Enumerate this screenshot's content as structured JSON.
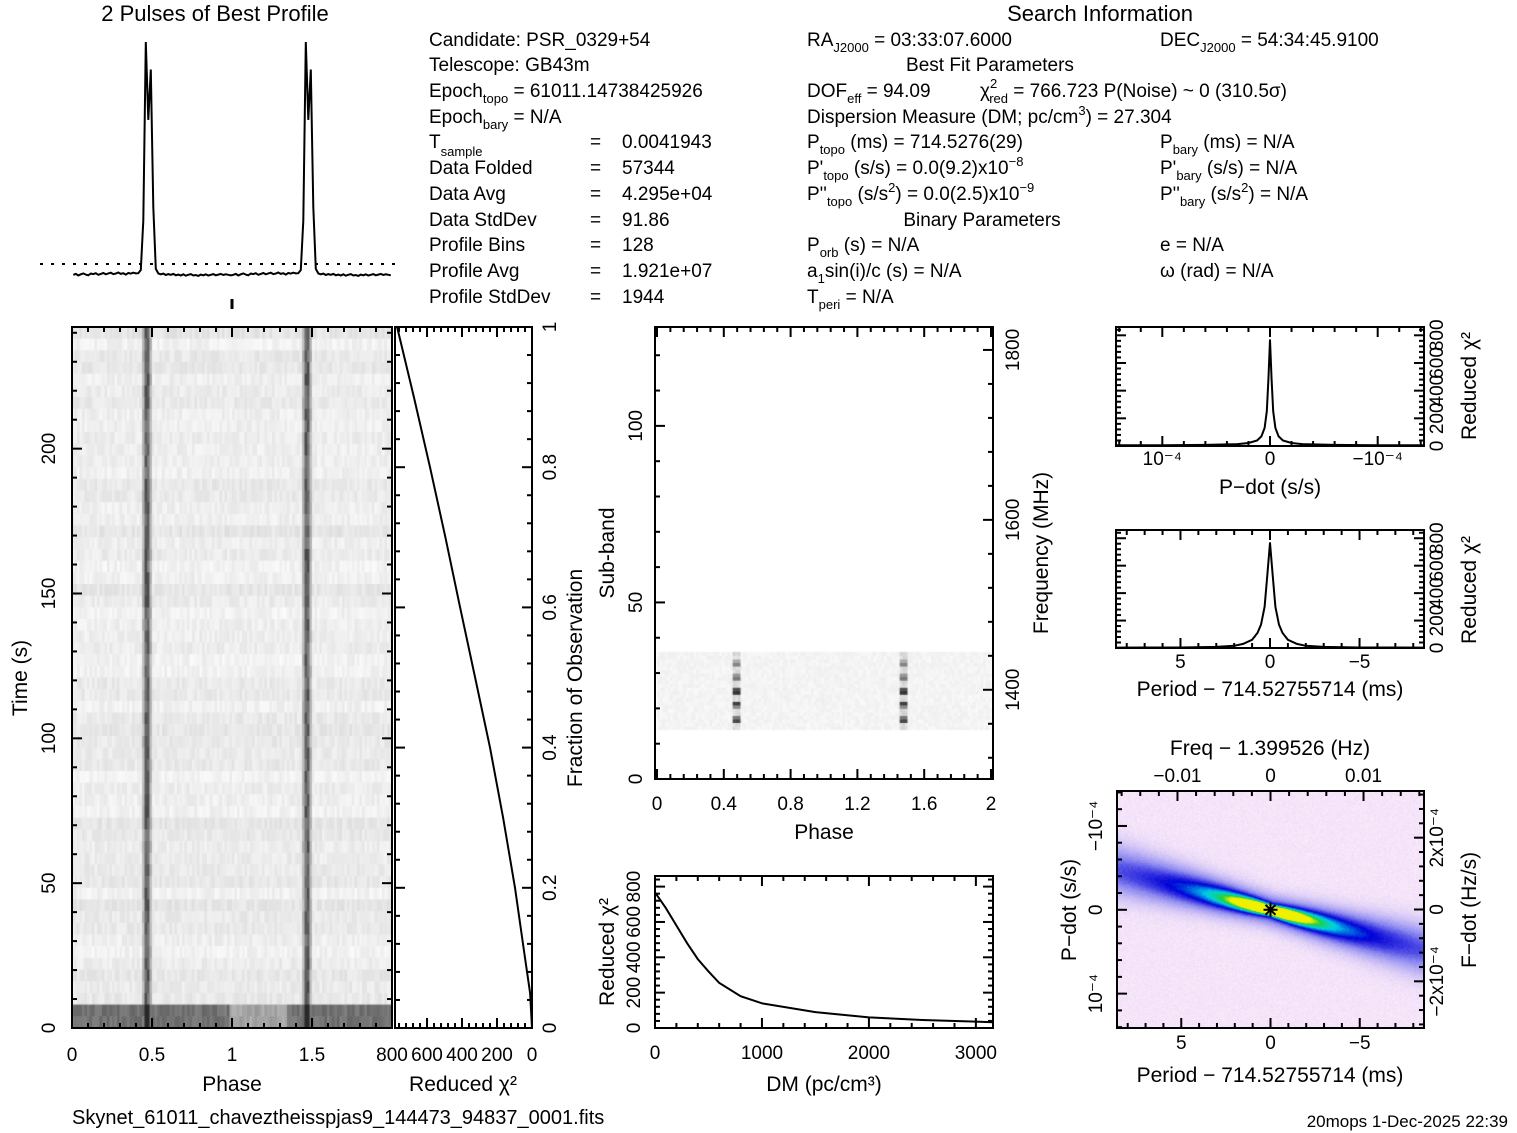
{
  "header": {
    "profile_title": "2 Pulses of Best Profile",
    "search_title": "Search Information"
  },
  "info": {
    "left": [
      {
        "main": "Candidate:  PSR_0329+54"
      },
      {
        "main": "Telescope:  GB43m"
      },
      {
        "main": "Epoch",
        "sub": "topo",
        "rest": " = 61011.14738425926"
      },
      {
        "main": "Epoch",
        "sub": "bary",
        "rest": " = N/A"
      },
      {
        "main": "T",
        "sub": "sample",
        "eq": "=",
        "val": "0.0041943"
      },
      {
        "main": "Data Folded",
        "eq": "=",
        "val": "57344"
      },
      {
        "main": "Data Avg",
        "eq": "=",
        "val": "4.295e+04"
      },
      {
        "main": "Data StdDev",
        "eq": "=",
        "val": "91.86"
      },
      {
        "main": "Profile Bins",
        "eq": "=",
        "val": "128"
      },
      {
        "main": "Profile Avg",
        "eq": "=",
        "val": "1.921e+07"
      },
      {
        "main": "Profile StdDev",
        "eq": "=",
        "val": "1944"
      }
    ],
    "middle": {
      "ra": {
        "main": "RA",
        "sub": "J2000",
        "rest": " = 03:33:07.6000"
      },
      "best_fit_heading": "Best Fit Parameters",
      "dof": {
        "main": "DOF",
        "sub": "eff",
        "rest": " = 94.09"
      },
      "chi2": {
        "main": "χ",
        "sup": "2",
        "sub": "red",
        "rest": " = 766.723  P(Noise) ~ 0   (310.5σ)"
      },
      "dm": {
        "main": "Dispersion Measure (DM; pc/cm",
        "sup": "3",
        "rest": ") = 27.304"
      },
      "p_topo": {
        "main": "P",
        "sub": "topo",
        "rest": " (ms) =  714.5276(29)"
      },
      "pd_topo": {
        "main": "P'",
        "sub": "topo",
        "rest": " (s/s) = 0.0(9.2)x10",
        "sup": "−8"
      },
      "pdd_topo": {
        "main": "P''",
        "sub": "topo",
        "rest": " (s/s",
        "sup": "2",
        "rest2": ") = 0.0(2.5)x10",
        "sup2": "−9"
      },
      "binary_heading": "Binary Parameters",
      "p_orb": {
        "main": "P",
        "sub": "orb",
        "rest": " (s) = N/A"
      },
      "a1sini": {
        "main": "a",
        "sub": "1",
        "rest": "sin(i)/c (s) = N/A"
      },
      "t_peri": {
        "main": "T",
        "sub": "peri",
        "rest": " = N/A"
      }
    },
    "right": {
      "dec": {
        "main": "DEC",
        "sub": "J2000",
        "rest": " = 54:34:45.9100"
      },
      "p_bary": {
        "main": "P",
        "sub": "bary",
        "rest": " (ms) = N/A"
      },
      "pd_bary": {
        "main": "P'",
        "sub": "bary",
        "rest": " (s/s) = N/A"
      },
      "pdd_bary": {
        "main": "P''",
        "sub": "bary",
        "rest": " (s/s",
        "sup": "2",
        "rest2": ") = N/A"
      },
      "e": "e = N/A",
      "omega": "ω (rad) = N/A"
    }
  },
  "footer": {
    "filename": "Skynet_61011_chaveztheisspjas9_144473_94837_0001.fits",
    "stamp": "20mops   1-Dec-2025 22:39"
  },
  "chart_data": [
    {
      "id": "profile",
      "type": "line",
      "title": "2 Pulses of Best Profile",
      "xlim": [
        0,
        2
      ],
      "ylim": [
        -3,
        100
      ],
      "bins_per_pulse": 64,
      "mean": 3.1,
      "values": [
        -1.6,
        -1.2,
        -1.9,
        -1.4,
        -1.0,
        -1.5,
        -1.8,
        -1.1,
        -1.3,
        -0.9,
        -1.6,
        -1.2,
        -0.8,
        -1.4,
        -1.0,
        -0.7,
        -1.3,
        -1.1,
        -0.6,
        -1.2,
        -0.9,
        -1.5,
        -0.8,
        -1.1,
        -0.7,
        -1.0,
        -0.9,
        0.5,
        22,
        100,
        66,
        88,
        28,
        1.0,
        -1.0,
        -1.4,
        -1.1,
        -1.7,
        -1.3,
        -1.6,
        -1.2,
        -1.8,
        -1.5,
        -1.9,
        -1.4,
        -2.0,
        -1.6,
        -1.3,
        -1.9,
        -1.7,
        -2.1,
        -1.5,
        -1.8,
        -1.4,
        -1.9,
        -1.6,
        -1.3,
        -1.8,
        -1.5,
        -1.2,
        -1.7,
        -1.4,
        -1.6,
        -1.8
      ]
    },
    {
      "id": "time_phase",
      "type": "heatmap",
      "xlabel": "Phase",
      "ylabel": "Time (s)",
      "xlim": [
        0,
        2
      ],
      "ylim": [
        0,
        242
      ],
      "pulse_phase": 0.465,
      "xticks": [
        {
          "value": 0,
          "label": "0"
        },
        {
          "value": 0.5,
          "label": "0.5"
        },
        {
          "value": 1,
          "label": "1"
        },
        {
          "value": 1.5,
          "label": "1.5"
        }
      ],
      "yticks": [
        {
          "value": 0,
          "label": "0"
        },
        {
          "value": 50,
          "label": "50"
        },
        {
          "value": 100,
          "label": "100"
        },
        {
          "value": 150,
          "label": "150"
        },
        {
          "value": 200,
          "label": "200"
        }
      ]
    },
    {
      "id": "chi2_vs_fraction",
      "type": "line",
      "xlabel": "Reduced χ²",
      "ylabel": "Fraction of Observation",
      "xlim": [
        783,
        0
      ],
      "ylim": [
        0,
        1
      ],
      "x": [
        0,
        11,
        40,
        97,
        165,
        240,
        325,
        411,
        495,
        583,
        675,
        771
      ],
      "y": [
        0,
        0.05,
        0.1,
        0.2,
        0.3,
        0.4,
        0.5,
        0.6,
        0.7,
        0.8,
        0.9,
        1.0
      ],
      "xticks": [
        {
          "value": 800,
          "label": "800"
        },
        {
          "value": 600,
          "label": "600"
        },
        {
          "value": 400,
          "label": "400"
        },
        {
          "value": 200,
          "label": "200"
        },
        {
          "value": 0,
          "label": "0"
        }
      ],
      "yticks": [
        {
          "value": 0,
          "label": "0"
        },
        {
          "value": 0.2,
          "label": "0.2"
        },
        {
          "value": 0.4,
          "label": "0.4"
        },
        {
          "value": 0.6,
          "label": "0.6"
        },
        {
          "value": 0.8,
          "label": "0.8"
        },
        {
          "value": 1,
          "label": "1"
        }
      ]
    },
    {
      "id": "subband_phase",
      "type": "heatmap",
      "xlabel": "Phase",
      "ylabel": "Sub-band",
      "y2label": "Frequency (MHz)",
      "xlim": [
        -0.012,
        2.012
      ],
      "ylim": [
        0,
        128
      ],
      "y2lim": [
        1295,
        1827
      ],
      "active_subbands": [
        14,
        35
      ],
      "pulse_phase": 0.48,
      "xticks": [
        {
          "value": 0,
          "label": "0"
        },
        {
          "value": 0.4,
          "label": "0.4"
        },
        {
          "value": 0.8,
          "label": "0.8"
        },
        {
          "value": 1.2,
          "label": "1.2"
        },
        {
          "value": 1.6,
          "label": "1.6"
        },
        {
          "value": 2,
          "label": "2"
        }
      ],
      "yticks": [
        {
          "value": 0,
          "label": "0"
        },
        {
          "value": 50,
          "label": "50"
        },
        {
          "value": 100,
          "label": "100"
        }
      ],
      "y2ticks": [
        {
          "value": 1400,
          "label": "1400"
        },
        {
          "value": 1600,
          "label": "1600"
        },
        {
          "value": 1800,
          "label": "1800"
        }
      ]
    },
    {
      "id": "dm_curve",
      "type": "line",
      "xlabel": "DM (pc/cm³)",
      "ylabel": "Reduced χ²",
      "xlim": [
        0,
        3160
      ],
      "ylim": [
        0,
        860
      ],
      "x": [
        0,
        100,
        200,
        300,
        400,
        500,
        600,
        800,
        1000,
        1500,
        2000,
        2500,
        3000,
        3160
      ],
      "y": [
        767,
        680,
        580,
        480,
        390,
        320,
        255,
        180,
        140,
        90,
        60,
        45,
        36,
        33
      ],
      "xticks": [
        {
          "value": 0,
          "label": "0"
        },
        {
          "value": 1000,
          "label": "1000"
        },
        {
          "value": 2000,
          "label": "2000"
        },
        {
          "value": 3000,
          "label": "3000"
        }
      ],
      "yticks": [
        {
          "value": 0,
          "label": "0"
        },
        {
          "value": 200,
          "label": "200"
        },
        {
          "value": 400,
          "label": "400"
        },
        {
          "value": 600,
          "label": "600"
        },
        {
          "value": 800,
          "label": "800"
        }
      ]
    },
    {
      "id": "pdot_curve",
      "type": "line",
      "xlabel": "P−dot (s/s)",
      "ylabel": "Reduced χ²",
      "xlim": [
        0.000143,
        -0.000143
      ],
      "ylim": [
        0,
        860
      ],
      "x": [
        -0.000143,
        -0.0001,
        -6e-05,
        -3e-05,
        -2e-05,
        -1.2e-05,
        -8e-06,
        -5e-06,
        -3e-06,
        -1.5e-06,
        0,
        1.5e-06,
        3e-06,
        5e-06,
        8e-06,
        1.2e-05,
        2e-05,
        3e-05,
        6e-05,
        0.0001,
        0.000143
      ],
      "y": [
        5,
        6,
        8,
        14,
        22,
        40,
        70,
        130,
        250,
        480,
        767,
        480,
        250,
        130,
        70,
        40,
        22,
        14,
        8,
        6,
        5
      ],
      "xticks": [
        {
          "value": 0.0001,
          "label": "10⁻⁴"
        },
        {
          "value": 0,
          "label": "0"
        },
        {
          "value": -0.0001,
          "label": "−10⁻⁴"
        }
      ],
      "yticks": [
        {
          "value": 0,
          "label": "0"
        },
        {
          "value": 200,
          "label": "200"
        },
        {
          "value": 400,
          "label": "400"
        },
        {
          "value": 600,
          "label": "600"
        },
        {
          "value": 800,
          "label": "800"
        }
      ]
    },
    {
      "id": "period_curve",
      "type": "line",
      "xlabel": "Period − 714.52755714 (ms)",
      "ylabel": "Reduced χ²",
      "xlim": [
        8.6,
        -8.6
      ],
      "ylim": [
        0,
        860
      ],
      "x": [
        -8.6,
        -5,
        -3,
        -2,
        -1.5,
        -1,
        -0.7,
        -0.5,
        -0.3,
        -0.15,
        0,
        0.15,
        0.3,
        0.5,
        0.7,
        1,
        1.5,
        2,
        3,
        5,
        8.6
      ],
      "y": [
        3,
        4,
        8,
        16,
        30,
        60,
        110,
        170,
        300,
        530,
        767,
        530,
        300,
        170,
        110,
        60,
        30,
        16,
        8,
        4,
        3
      ],
      "xticks": [
        {
          "value": 5,
          "label": "5"
        },
        {
          "value": 0,
          "label": "0"
        },
        {
          "value": -5,
          "label": "−5"
        }
      ],
      "yticks": [
        {
          "value": 0,
          "label": "0"
        },
        {
          "value": 200,
          "label": "200"
        },
        {
          "value": 400,
          "label": "400"
        },
        {
          "value": 600,
          "label": "600"
        },
        {
          "value": 800,
          "label": "800"
        }
      ]
    },
    {
      "id": "p_pdot_plane",
      "type": "heatmap",
      "title": "Freq − 1.399526 (Hz)",
      "xlabel": "Period − 714.52755714 (ms)",
      "ylabel": "P−dot (s/s)",
      "y2label": "F−dot (Hz/s)",
      "xlim": [
        8.6,
        -8.6
      ],
      "ylim": [
        0.000141,
        -0.0001417
      ],
      "x2lim": [
        -0.0165,
        0.0165
      ],
      "y2lim": [
        -0.00033,
        0.00033
      ],
      "best": [
        0,
        0
      ],
      "colormap": [
        "#fdebfa",
        "#8c88f0",
        "#0000d8",
        "#00d0e8",
        "#20d040",
        "#f0f000"
      ],
      "xticks": [
        {
          "value": 5,
          "label": "5"
        },
        {
          "value": 0,
          "label": "0"
        },
        {
          "value": -5,
          "label": "−5"
        }
      ],
      "x2ticks": [
        {
          "value": -0.01,
          "label": "−0.01"
        },
        {
          "value": 0,
          "label": "0"
        },
        {
          "value": 0.01,
          "label": "0.01"
        }
      ],
      "yticks": [
        {
          "value": -0.0001,
          "label": "−10⁻⁴"
        },
        {
          "value": 0,
          "label": "0"
        },
        {
          "value": 0.0001,
          "label": "10⁻⁴"
        }
      ],
      "y2ticks": [
        {
          "value": 0.0002,
          "label": "2x10⁻⁴"
        },
        {
          "value": 0,
          "label": "0"
        },
        {
          "value": -0.0002,
          "label": "−2x10⁻⁴"
        }
      ]
    }
  ]
}
